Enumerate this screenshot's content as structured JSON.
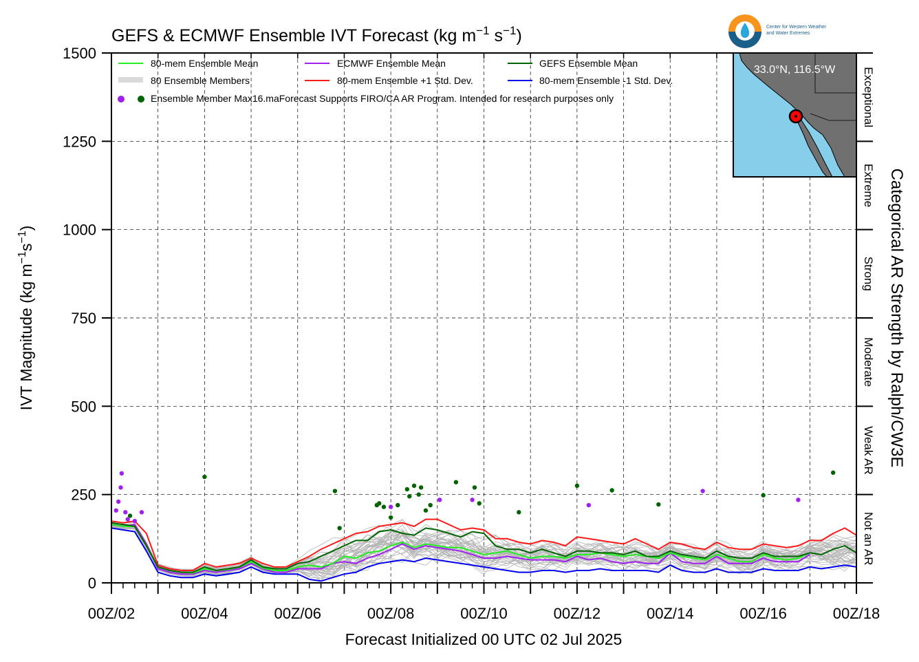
{
  "title": {
    "main": "GEFS & ECMWF Ensemble IVT Forecast (kg m",
    "sup1": "−1",
    "mid": " s",
    "sup2": "−1",
    "end": ")"
  },
  "axes": {
    "ylabel_main": "IVT Magnitude (kg m",
    "ylabel_sup1": "−1",
    "ylabel_mid": "s",
    "ylabel_sup2": "−1",
    "ylabel_end": ")",
    "xlabel": "Forecast Initialized 00 UTC 02 Jul 2025",
    "right_label": "Categorical AR Strength by Ralph/CW3E"
  },
  "legend": {
    "mean80": "80-mem Ensemble Mean",
    "members": "80 Ensemble Members",
    "max": "Ensemble Member Max",
    "ecmwf_mean": "ECMWF Ensemble Mean",
    "plus_sd": "80-mem Ensemble +1 Std. Dev.",
    "gefs_mean": "GEFS Ensemble Mean",
    "minus_sd": "80-mem Ensemble -1 Std. Dev.",
    "notice": "16.maForecast Supports FIRO/CA AR Program. Intended for research purposes only"
  },
  "map": {
    "location": "33.0°N, 116.5°W"
  },
  "logo": {
    "line1": "Center for Western Weather",
    "line2": "and Water Extremes"
  },
  "colors": {
    "mean80": "#22ee22",
    "ecmwf": "#a020f0",
    "gefs": "#006400",
    "plus_sd": "#ff1a1a",
    "minus_sd": "#0000ee",
    "members": "#b4b4b4",
    "ocean": "#87ceeb",
    "land": "#707070"
  },
  "chart_data": {
    "type": "line",
    "x_unit": "days since 00Z/02 Jul 2025",
    "xlim": [
      0,
      16
    ],
    "ylim": [
      0,
      1500
    ],
    "grid": true,
    "x_tick_labels": [
      "00Z/02",
      "00Z/04",
      "00Z/06",
      "00Z/08",
      "00Z/10",
      "00Z/12",
      "00Z/14",
      "00Z/16",
      "00Z/18"
    ],
    "x_tick_values": [
      0,
      2,
      4,
      6,
      8,
      10,
      12,
      14,
      16
    ],
    "y_ticks": [
      0,
      250,
      500,
      750,
      1000,
      1250,
      1500
    ],
    "categories": [
      {
        "name": "Not an AR",
        "range": [
          0,
          250
        ]
      },
      {
        "name": "Weak AR",
        "range": [
          250,
          500
        ]
      },
      {
        "name": "Moderate",
        "range": [
          500,
          750
        ]
      },
      {
        "name": "Strong",
        "range": [
          750,
          1000
        ]
      },
      {
        "name": "Extreme",
        "range": [
          1000,
          1250
        ]
      },
      {
        "name": "Exceptional",
        "range": [
          1250,
          1500
        ]
      }
    ],
    "series": [
      {
        "name": "80-mem Ensemble Mean",
        "color": "#22ee22",
        "x": [
          0,
          0.25,
          0.5,
          0.75,
          1,
          1.25,
          1.5,
          1.75,
          2,
          2.25,
          2.5,
          2.75,
          3,
          3.25,
          3.5,
          3.75,
          4,
          4.25,
          4.5,
          4.75,
          5,
          5.25,
          5.5,
          5.75,
          6,
          6.25,
          6.5,
          6.75,
          7,
          7.25,
          7.5,
          7.75,
          8,
          8.25,
          8.5,
          8.75,
          9,
          9.25,
          9.5,
          9.75,
          10,
          10.25,
          10.5,
          10.75,
          11,
          11.25,
          11.5,
          11.75,
          12,
          12.25,
          12.5,
          12.75,
          13,
          13.25,
          13.5,
          13.75,
          14,
          14.25,
          14.5,
          14.75,
          15
        ],
        "values": [
          165,
          160,
          160,
          105,
          45,
          35,
          30,
          28,
          40,
          35,
          38,
          45,
          60,
          42,
          35,
          35,
          45,
          50,
          45,
          55,
          75,
          70,
          85,
          90,
          105,
          115,
          100,
          110,
          105,
          100,
          100,
          90,
          80,
          85,
          90,
          80,
          70,
          75,
          75,
          70,
          80,
          80,
          85,
          80,
          75,
          80,
          75,
          70,
          85,
          75,
          70,
          65,
          80,
          70,
          60,
          60,
          80,
          70,
          65,
          70,
          85
        ]
      },
      {
        "name": "ECMWF Ensemble Mean",
        "color": "#a020f0",
        "x": [
          0,
          0.25,
          0.5,
          0.75,
          1,
          1.25,
          1.5,
          1.75,
          2,
          2.25,
          2.5,
          2.75,
          3,
          3.25,
          3.5,
          3.75,
          4,
          4.25,
          4.5,
          4.75,
          5,
          5.25,
          5.5,
          5.75,
          6,
          6.25,
          6.5,
          6.75,
          7,
          7.25,
          7.5,
          7.75,
          8,
          8.25,
          8.5,
          8.75,
          9,
          9.25,
          9.5,
          9.75,
          10,
          10.25,
          10.5,
          10.75,
          11,
          11.25,
          11.5,
          11.75,
          12,
          12.25,
          12.5,
          12.75,
          13,
          13.25,
          13.5,
          13.75,
          14,
          14.25,
          14.5,
          14.75,
          15
        ],
        "values": [
          165,
          160,
          165,
          110,
          40,
          30,
          25,
          25,
          35,
          30,
          35,
          40,
          55,
          40,
          30,
          30,
          40,
          40,
          40,
          55,
          60,
          55,
          70,
          80,
          95,
          110,
          95,
          105,
          100,
          95,
          90,
          80,
          70,
          70,
          75,
          70,
          65,
          65,
          65,
          60,
          75,
          65,
          70,
          60,
          55,
          60,
          55,
          55,
          85,
          60,
          55,
          55,
          75,
          55,
          55,
          55,
          70,
          60,
          60,
          60,
          80
        ]
      },
      {
        "name": "GEFS Ensemble Mean",
        "color": "#006400",
        "x": [
          0,
          0.25,
          0.5,
          0.75,
          1,
          1.25,
          1.5,
          1.75,
          2,
          2.25,
          2.5,
          2.75,
          3,
          3.25,
          3.5,
          3.75,
          4,
          4.25,
          4.5,
          4.75,
          5,
          5.25,
          5.5,
          5.75,
          6,
          6.25,
          6.5,
          6.75,
          7,
          7.25,
          7.5,
          7.75,
          8,
          8.25,
          8.5,
          8.75,
          9,
          9.25,
          9.5,
          9.75,
          10,
          10.25,
          10.5,
          10.75,
          11,
          11.25,
          11.5,
          11.75,
          12,
          12.25,
          12.5,
          12.75,
          13,
          13.25,
          13.5,
          13.75,
          14,
          14.25,
          14.5,
          14.75,
          15,
          15.25,
          15.5,
          15.75,
          16
        ],
        "values": [
          170,
          165,
          160,
          105,
          45,
          35,
          30,
          30,
          45,
          35,
          40,
          45,
          65,
          45,
          40,
          40,
          55,
          60,
          75,
          90,
          105,
          120,
          120,
          145,
          150,
          140,
          135,
          155,
          150,
          140,
          130,
          145,
          140,
          105,
          95,
          95,
          85,
          95,
          85,
          75,
          90,
          90,
          85,
          85,
          80,
          90,
          75,
          75,
          90,
          80,
          75,
          70,
          90,
          75,
          70,
          70,
          85,
          75,
          75,
          75,
          85,
          80,
          95,
          105,
          85
        ]
      },
      {
        "name": "80-mem Ensemble +1 Std. Dev.",
        "color": "#ff1a1a",
        "x": [
          0,
          0.25,
          0.5,
          0.75,
          1,
          1.25,
          1.5,
          1.75,
          2,
          2.25,
          2.5,
          2.75,
          3,
          3.25,
          3.5,
          3.75,
          4,
          4.25,
          4.5,
          4.75,
          5,
          5.25,
          5.5,
          5.75,
          6,
          6.25,
          6.5,
          6.75,
          7,
          7.25,
          7.5,
          7.75,
          8,
          8.25,
          8.5,
          8.75,
          9,
          9.25,
          9.5,
          9.75,
          10,
          10.25,
          10.5,
          10.75,
          11,
          11.25,
          11.5,
          11.75,
          12,
          12.25,
          12.5,
          12.75,
          13,
          13.25,
          13.5,
          13.75,
          14,
          14.25,
          14.5,
          14.75,
          15,
          15.25,
          15.5,
          15.75,
          16
        ],
        "values": [
          175,
          170,
          175,
          140,
          50,
          40,
          35,
          35,
          55,
          45,
          50,
          55,
          70,
          55,
          45,
          45,
          60,
          75,
          95,
          110,
          125,
          140,
          145,
          160,
          165,
          170,
          160,
          180,
          180,
          165,
          150,
          155,
          150,
          125,
          125,
          115,
          110,
          120,
          115,
          105,
          130,
          125,
          120,
          115,
          110,
          125,
          110,
          95,
          115,
          110,
          100,
          95,
          115,
          100,
          95,
          95,
          110,
          105,
          100,
          105,
          120,
          120,
          140,
          155,
          135
        ]
      },
      {
        "name": "80-mem Ensemble -1 Std. Dev.",
        "color": "#0000ee",
        "x": [
          0,
          0.25,
          0.5,
          0.75,
          1,
          1.25,
          1.5,
          1.75,
          2,
          2.25,
          2.5,
          2.75,
          3,
          3.25,
          3.5,
          3.75,
          4,
          4.25,
          4.5,
          4.75,
          5,
          5.25,
          5.5,
          5.75,
          6,
          6.25,
          6.5,
          6.75,
          7,
          7.25,
          7.5,
          7.75,
          8,
          8.25,
          8.5,
          8.75,
          9,
          9.25,
          9.5,
          9.75,
          10,
          10.25,
          10.5,
          10.75,
          11,
          11.25,
          11.5,
          11.75,
          12,
          12.25,
          12.5,
          12.75,
          13,
          13.25,
          13.5,
          13.75,
          14,
          14.25,
          14.5,
          14.75,
          15,
          15.25,
          15.5,
          15.75,
          16
        ],
        "values": [
          155,
          150,
          145,
          90,
          30,
          20,
          15,
          15,
          25,
          20,
          25,
          30,
          45,
          30,
          25,
          25,
          25,
          10,
          5,
          15,
          25,
          30,
          45,
          55,
          60,
          65,
          60,
          70,
          65,
          60,
          55,
          50,
          45,
          40,
          35,
          30,
          30,
          35,
          35,
          30,
          35,
          35,
          40,
          35,
          35,
          35,
          35,
          30,
          50,
          35,
          30,
          30,
          40,
          30,
          30,
          30,
          40,
          35,
          35,
          35,
          45,
          40,
          45,
          50,
          45
        ]
      }
    ],
    "ecmwf_max_points": [
      [
        0.1,
        205
      ],
      [
        0.15,
        230
      ],
      [
        0.2,
        270
      ],
      [
        0.22,
        310
      ],
      [
        0.3,
        200
      ],
      [
        0.35,
        180
      ],
      [
        0.5,
        175
      ],
      [
        0.65,
        200
      ],
      [
        6,
        215
      ],
      [
        7.05,
        235
      ],
      [
        7.75,
        235
      ],
      [
        10.25,
        220
      ],
      [
        12.7,
        260
      ],
      [
        14.75,
        235
      ]
    ],
    "gefs_max_points": [
      [
        0.4,
        190
      ],
      [
        2,
        300
      ],
      [
        4.8,
        260
      ],
      [
        4.9,
        155
      ],
      [
        5.7,
        220
      ],
      [
        5.75,
        225
      ],
      [
        5.85,
        215
      ],
      [
        6.0,
        185
      ],
      [
        6.15,
        220
      ],
      [
        6.35,
        265
      ],
      [
        6.4,
        245
      ],
      [
        6.5,
        275
      ],
      [
        6.6,
        250
      ],
      [
        6.65,
        270
      ],
      [
        6.75,
        205
      ],
      [
        6.85,
        220
      ],
      [
        7.4,
        285
      ],
      [
        7.8,
        270
      ],
      [
        7.9,
        225
      ],
      [
        8.75,
        200
      ],
      [
        10.0,
        275
      ],
      [
        10.75,
        262
      ],
      [
        11.75,
        222
      ],
      [
        14,
        248
      ],
      [
        15.5,
        312
      ]
    ]
  }
}
